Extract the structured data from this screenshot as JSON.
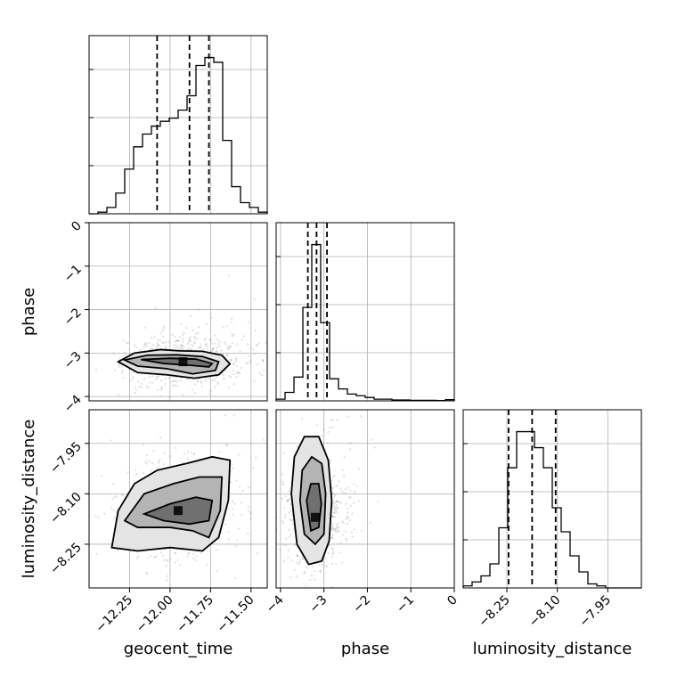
{
  "chart_data": {
    "type": "corner",
    "parameters": [
      "geocent_time",
      "phase",
      "luminosity_distance"
    ],
    "axis_labels": {
      "geocent_time": "geocent_time",
      "phase": "phase",
      "luminosity_distance": "luminosity_distance"
    },
    "ranges": {
      "geocent_time": [
        -12.5,
        -11.4
      ],
      "phase": [
        -4.1,
        0.0
      ],
      "luminosity_distance": [
        -8.38,
        -7.85
      ]
    },
    "ticks": {
      "geocent_time": [
        {
          "value": -12.25,
          "label": "−12.25"
        },
        {
          "value": -12.0,
          "label": "−12.00"
        },
        {
          "value": -11.75,
          "label": "−11.75"
        },
        {
          "value": -11.5,
          "label": "−11.50"
        }
      ],
      "phase": [
        {
          "value": -4,
          "label": "−4"
        },
        {
          "value": -3,
          "label": "−3"
        },
        {
          "value": -2,
          "label": "−2"
        },
        {
          "value": -1,
          "label": "−1"
        },
        {
          "value": 0,
          "label": "0"
        }
      ],
      "luminosity_distance": [
        {
          "value": -8.25,
          "label": "−8.25"
        },
        {
          "value": -8.1,
          "label": "−8.10"
        },
        {
          "value": -7.95,
          "label": "−7.95"
        }
      ]
    },
    "quantiles": {
      "geocent_time": [
        -12.08,
        -11.88,
        -11.76
      ],
      "phase": [
        -3.37,
        -3.17,
        -2.93
      ],
      "luminosity_distance": [
        -8.245,
        -8.175,
        -8.105
      ]
    },
    "histograms": {
      "geocent_time": {
        "edges": [
          -12.5,
          -12.445,
          -12.39,
          -12.335,
          -12.28,
          -12.225,
          -12.17,
          -12.115,
          -12.06,
          -12.005,
          -11.95,
          -11.895,
          -11.84,
          -11.785,
          -11.73,
          -11.675,
          -11.62,
          -11.565,
          -11.51,
          -11.455,
          -11.4
        ],
        "counts": [
          0,
          1,
          4,
          13,
          28,
          42,
          50,
          55,
          58,
          60,
          65,
          74,
          93,
          98,
          95,
          46,
          17,
          7,
          4,
          1
        ]
      },
      "phase": {
        "edges": [
          -4.1,
          -3.895,
          -3.69,
          -3.485,
          -3.28,
          -3.075,
          -2.87,
          -2.665,
          -2.46,
          -2.255,
          -2.05,
          -1.845,
          -1.64,
          -1.435,
          -1.23,
          -1.025,
          -0.82,
          -0.615,
          -0.41,
          -0.205,
          0.0
        ],
        "counts": [
          1,
          5,
          14,
          55,
          92,
          46,
          13,
          7,
          4,
          3,
          2,
          1,
          1,
          0.5,
          0.5,
          0.3,
          0.3,
          0.3,
          0.2,
          0.7
        ]
      },
      "luminosity_distance": {
        "edges": [
          -8.38,
          -8.3535,
          -8.327,
          -8.3005,
          -8.274,
          -8.2475,
          -8.221,
          -8.1945,
          -8.168,
          -8.1415,
          -8.115,
          -8.0885,
          -8.062,
          -8.0355,
          -8.009,
          -7.9825,
          -7.956,
          -7.9295,
          -7.903,
          -7.8765,
          -7.85
        ],
        "counts": [
          1,
          3,
          6,
          12,
          30,
          60,
          78,
          78,
          70,
          60,
          40,
          28,
          16,
          8,
          2,
          1,
          0,
          0,
          0,
          0
        ]
      }
    },
    "joint": [
      {
        "x": "geocent_time",
        "y": "phase",
        "center": [
          -11.92,
          -3.2
        ],
        "sigma": [
          0.18,
          0.28
        ],
        "contours": [
          [
            [
              -12.32,
              -3.2
            ],
            [
              -12.22,
              -3.0
            ],
            [
              -12.06,
              -2.92
            ],
            [
              -11.94,
              -2.95
            ],
            [
              -11.8,
              -2.96
            ],
            [
              -11.68,
              -3.05
            ],
            [
              -11.63,
              -3.25
            ],
            [
              -11.7,
              -3.5
            ],
            [
              -11.85,
              -3.58
            ],
            [
              -12.02,
              -3.5
            ],
            [
              -12.2,
              -3.45
            ],
            [
              -12.32,
              -3.2
            ]
          ],
          [
            [
              -12.28,
              -3.16
            ],
            [
              -12.14,
              -3.05
            ],
            [
              -11.96,
              -3.04
            ],
            [
              -11.8,
              -3.08
            ],
            [
              -11.7,
              -3.2
            ],
            [
              -11.72,
              -3.4
            ],
            [
              -11.86,
              -3.48
            ],
            [
              -12.02,
              -3.36
            ],
            [
              -12.2,
              -3.3
            ],
            [
              -12.28,
              -3.16
            ]
          ],
          [
            [
              -12.18,
              -3.15
            ],
            [
              -12.0,
              -3.12
            ],
            [
              -11.84,
              -3.14
            ],
            [
              -11.74,
              -3.24
            ],
            [
              -11.76,
              -3.32
            ],
            [
              -11.88,
              -3.28
            ],
            [
              -12.04,
              -3.24
            ],
            [
              -12.18,
              -3.15
            ]
          ]
        ]
      },
      {
        "x": "geocent_time",
        "y": "luminosity_distance",
        "center": [
          -11.95,
          -8.15
        ],
        "sigma": [
          0.17,
          0.07
        ],
        "contours": [
          [
            [
              -12.36,
              -8.26
            ],
            [
              -12.32,
              -8.15
            ],
            [
              -12.22,
              -8.07
            ],
            [
              -12.08,
              -8.03
            ],
            [
              -11.9,
              -8.01
            ],
            [
              -11.74,
              -7.99
            ],
            [
              -11.63,
              -8.0
            ],
            [
              -11.64,
              -8.12
            ],
            [
              -11.7,
              -8.23
            ],
            [
              -11.8,
              -8.27
            ],
            [
              -12.0,
              -8.26
            ],
            [
              -12.2,
              -8.27
            ],
            [
              -12.36,
              -8.26
            ]
          ],
          [
            [
              -12.28,
              -8.18
            ],
            [
              -12.16,
              -8.1
            ],
            [
              -11.98,
              -8.07
            ],
            [
              -11.82,
              -8.05
            ],
            [
              -11.68,
              -8.05
            ],
            [
              -11.69,
              -8.15
            ],
            [
              -11.76,
              -8.23
            ],
            [
              -11.86,
              -8.21
            ],
            [
              -12.0,
              -8.2
            ],
            [
              -12.2,
              -8.2
            ],
            [
              -12.28,
              -8.18
            ]
          ],
          [
            [
              -12.16,
              -8.16
            ],
            [
              -12.0,
              -8.13
            ],
            [
              -11.84,
              -8.11
            ],
            [
              -11.74,
              -8.12
            ],
            [
              -11.76,
              -8.18
            ],
            [
              -11.88,
              -8.19
            ],
            [
              -12.04,
              -8.18
            ],
            [
              -12.16,
              -8.16
            ]
          ]
        ]
      },
      {
        "x": "phase",
        "y": "luminosity_distance",
        "center": [
          -3.2,
          -8.17
        ],
        "sigma": [
          0.35,
          0.08
        ],
        "contours": [
          [
            [
              -3.75,
              -8.1
            ],
            [
              -3.68,
              -7.99
            ],
            [
              -3.45,
              -7.93
            ],
            [
              -3.12,
              -7.93
            ],
            [
              -2.9,
              -8.0
            ],
            [
              -2.82,
              -8.12
            ],
            [
              -2.88,
              -8.24
            ],
            [
              -3.05,
              -8.3
            ],
            [
              -3.35,
              -8.31
            ],
            [
              -3.62,
              -8.25
            ],
            [
              -3.75,
              -8.1
            ]
          ],
          [
            [
              -3.55,
              -8.12
            ],
            [
              -3.5,
              -8.03
            ],
            [
              -3.28,
              -7.99
            ],
            [
              -3.05,
              -8.01
            ],
            [
              -2.96,
              -8.1
            ],
            [
              -3.0,
              -8.22
            ],
            [
              -3.2,
              -8.25
            ],
            [
              -3.45,
              -8.22
            ],
            [
              -3.55,
              -8.12
            ]
          ],
          [
            [
              -3.4,
              -8.12
            ],
            [
              -3.3,
              -8.07
            ],
            [
              -3.12,
              -8.07
            ],
            [
              -3.06,
              -8.13
            ],
            [
              -3.12,
              -8.2
            ],
            [
              -3.3,
              -8.21
            ],
            [
              -3.4,
              -8.12
            ]
          ]
        ]
      }
    ]
  }
}
